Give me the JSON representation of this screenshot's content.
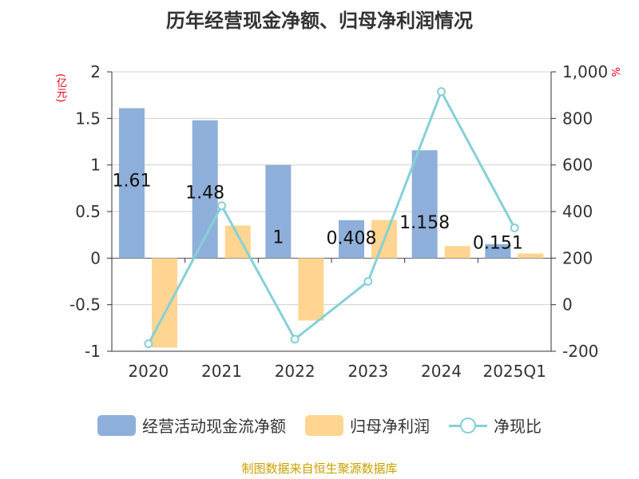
{
  "title": "历年经营现金净额、归母净利润情况",
  "source": "制图数据来自恒生聚源数据库",
  "chart_data": {
    "type": "bar",
    "categories": [
      "2020",
      "2021",
      "2022",
      "2023",
      "2024",
      "2025Q1"
    ],
    "ylabel": "(亿元)",
    "y2label": "%",
    "ylim": [
      -1,
      2
    ],
    "yticks": [
      "2",
      "1.5",
      "1",
      "0.5",
      "0",
      "-0.5",
      "-1"
    ],
    "ytick_values": [
      2,
      1.5,
      1,
      0.5,
      0,
      -0.5,
      -1
    ],
    "y2lim": [
      -200,
      1000
    ],
    "y2ticks": [
      "1,000",
      "800",
      "600",
      "400",
      "200",
      "0",
      "-200"
    ],
    "y2tick_values": [
      1000,
      800,
      600,
      400,
      200,
      0,
      -200
    ],
    "grid": true,
    "legend_position": "bottom",
    "series": [
      {
        "name": "经营活动现金流净额",
        "kind": "bar",
        "axis": "left",
        "color": "#8eafd9",
        "values": [
          1.61,
          1.48,
          1,
          0.408,
          1.158,
          0.151
        ],
        "labels": [
          "1.61",
          "1.48",
          "1",
          "0.408",
          "1.158",
          "0.151"
        ]
      },
      {
        "name": "归母净利润",
        "kind": "bar",
        "axis": "left",
        "color": "#ffd591",
        "values": [
          -0.96,
          0.35,
          -0.67,
          0.41,
          0.13,
          0.05
        ]
      },
      {
        "name": "净现比",
        "kind": "line",
        "axis": "right",
        "color": "#86d0d6",
        "values": [
          -168,
          425,
          -148,
          100,
          915,
          330
        ]
      }
    ]
  }
}
